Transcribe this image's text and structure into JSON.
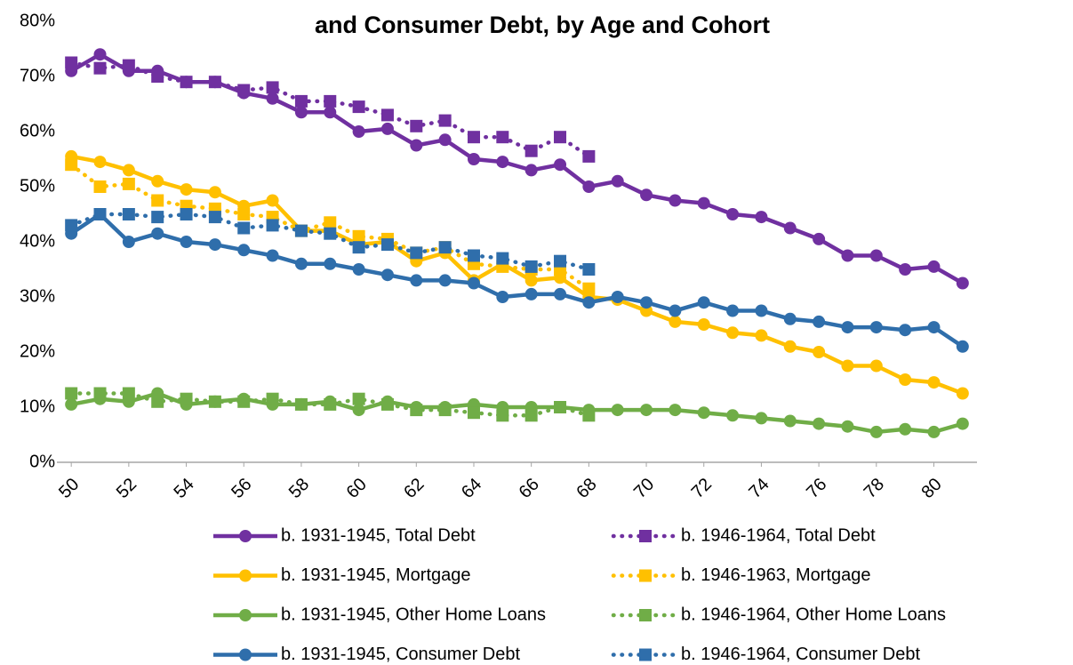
{
  "chart_data": {
    "type": "line",
    "title": "and Consumer Debt, by Age and Cohort",
    "x": [
      50,
      51,
      52,
      53,
      54,
      55,
      56,
      57,
      58,
      59,
      60,
      61,
      62,
      63,
      64,
      65,
      66,
      67,
      68,
      69,
      70,
      71,
      72,
      73,
      74,
      75,
      76,
      77,
      78,
      79,
      80,
      81
    ],
    "xlim": [
      49.5,
      81.5
    ],
    "xticks": [
      50,
      52,
      54,
      56,
      58,
      60,
      62,
      64,
      66,
      68,
      70,
      72,
      74,
      76,
      78,
      80
    ],
    "ylim": [
      0,
      80
    ],
    "yticks": [
      {
        "value": 0,
        "label": "0%"
      },
      {
        "value": 10,
        "label": "10%"
      },
      {
        "value": 20,
        "label": "20%"
      },
      {
        "value": 30,
        "label": "30%"
      },
      {
        "value": 40,
        "label": "40%"
      },
      {
        "value": 50,
        "label": "50%"
      },
      {
        "value": 60,
        "label": "60%"
      },
      {
        "value": 70,
        "label": "70%"
      },
      {
        "value": 80,
        "label": "80%"
      }
    ],
    "grid": false,
    "series": [
      {
        "name": "b. 1931-1945, Total Debt",
        "color": "#7030a0",
        "dashed": false,
        "marker": "circle",
        "values": [
          71,
          74,
          71,
          71,
          69,
          69,
          67,
          66,
          63.5,
          63.5,
          60,
          60.5,
          57.5,
          58.5,
          55,
          54.5,
          53,
          54,
          50,
          51,
          48.5,
          47.5,
          47,
          45,
          44.5,
          42.5,
          40.5,
          37.5,
          37.5,
          35,
          35.5,
          32.5
        ]
      },
      {
        "name": "b. 1946-1964, Total Debt",
        "color": "#7030a0",
        "dashed": true,
        "marker": "square",
        "values": [
          72.5,
          71.5,
          72,
          70,
          69,
          69,
          67.5,
          68,
          65.5,
          65.5,
          64.5,
          63,
          61,
          62,
          59,
          59,
          56.5,
          59,
          55.5,
          null,
          null,
          null,
          null,
          null,
          null,
          null,
          null,
          null,
          null,
          null,
          null,
          null
        ]
      },
      {
        "name": "b. 1931-1945, Mortgage",
        "color": "#ffc000",
        "dashed": false,
        "marker": "circle",
        "values": [
          55.5,
          54.5,
          53,
          51,
          49.5,
          49,
          46.5,
          47.5,
          42,
          42,
          39.5,
          40,
          36.5,
          38,
          33,
          36,
          33,
          33.5,
          30,
          29.5,
          27.5,
          25.5,
          25,
          23.5,
          23,
          21,
          20,
          17.5,
          17.5,
          15,
          14.5,
          12.5
        ]
      },
      {
        "name": "b. 1946-1963, Mortgage",
        "color": "#ffc000",
        "dashed": true,
        "marker": "square",
        "values": [
          54,
          50,
          50.5,
          47.5,
          46.5,
          46,
          45,
          44.5,
          42,
          43.5,
          41,
          40.5,
          38,
          39,
          36,
          35.5,
          35,
          35,
          31.5,
          null,
          null,
          null,
          null,
          null,
          null,
          null,
          null,
          null,
          null,
          null,
          null,
          null
        ]
      },
      {
        "name": "b. 1931-1945, Other Home Loans",
        "color": "#70ad47",
        "dashed": false,
        "marker": "circle",
        "values": [
          10.5,
          11.5,
          11,
          12.5,
          10.5,
          11,
          11.5,
          10.5,
          10.5,
          11,
          9.5,
          11,
          10,
          10,
          10.5,
          10,
          10,
          10,
          9.5,
          9.5,
          9.5,
          9.5,
          9,
          8.5,
          8,
          7.5,
          7,
          6.5,
          5.5,
          6,
          5.5,
          7
        ]
      },
      {
        "name": "b. 1946-1964, Other Home Loans",
        "color": "#70ad47",
        "dashed": true,
        "marker": "square",
        "values": [
          12.5,
          12.5,
          12.5,
          11,
          11.5,
          11,
          11,
          11.5,
          10.5,
          10.5,
          11.5,
          10.5,
          9.5,
          9.5,
          9,
          8.5,
          8.5,
          10,
          8.5,
          null,
          null,
          null,
          null,
          null,
          null,
          null,
          null,
          null,
          null,
          null,
          null,
          null
        ]
      },
      {
        "name": "b. 1931-1945, Consumer Debt",
        "color": "#2f6eab",
        "dashed": false,
        "marker": "circle",
        "values": [
          41.5,
          45,
          40,
          41.5,
          40,
          39.5,
          38.5,
          37.5,
          36,
          36,
          35,
          34,
          33,
          33,
          32.5,
          30,
          30.5,
          30.5,
          29,
          30,
          29,
          27.5,
          29,
          27.5,
          27.5,
          26,
          25.5,
          24.5,
          24.5,
          24,
          24.5,
          21
        ]
      },
      {
        "name": "b. 1946-1964, Consumer Debt",
        "color": "#2f6eab",
        "dashed": true,
        "marker": "square",
        "values": [
          43,
          45,
          45,
          44.5,
          45,
          44.5,
          42.5,
          43,
          42,
          41.5,
          39,
          39.5,
          38,
          39,
          37.5,
          37,
          35.5,
          36.5,
          35,
          null,
          null,
          null,
          null,
          null,
          null,
          null,
          null,
          null,
          null,
          null,
          null,
          null
        ]
      }
    ]
  }
}
